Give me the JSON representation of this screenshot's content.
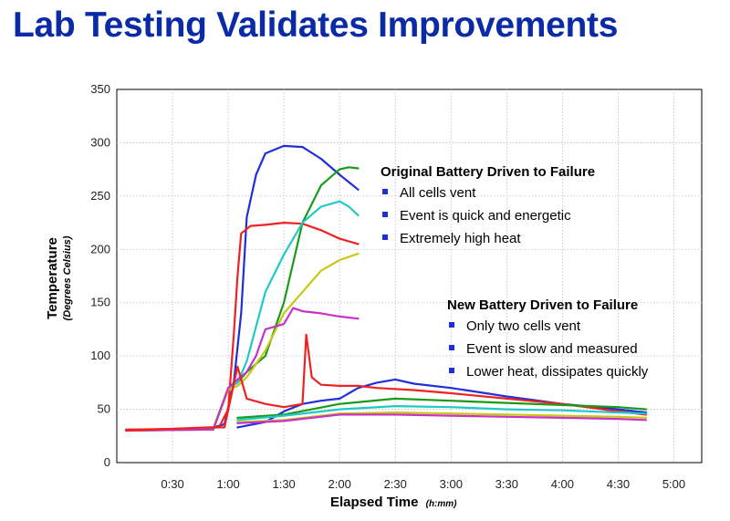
{
  "slide": {
    "title": "Lab Testing Validates Improvements"
  },
  "chart_data": {
    "type": "line",
    "ylabel": "Temperature",
    "ylabel_sub": "(Degrees Celsius)",
    "xlabel": "Elapsed Time",
    "xlabel_sub": "(h:mm)",
    "ylim": [
      0,
      350
    ],
    "xlim_minutes": [
      0,
      315
    ],
    "y_ticks": [
      0,
      50,
      100,
      150,
      200,
      250,
      300,
      350
    ],
    "x_ticks": [
      "0:30",
      "1:00",
      "1:30",
      "2:00",
      "2:30",
      "3:00",
      "3:30",
      "4:00",
      "4:30",
      "5:00"
    ],
    "grid": true,
    "annotations": [
      {
        "heading": "Original Battery Driven to Failure",
        "bullets": [
          "All cells vent",
          "Event is quick and energetic",
          "Extremely high heat"
        ]
      },
      {
        "heading": "New Battery Driven to Failure",
        "bullets": [
          "Only two cells vent",
          "Event is slow and measured",
          "Lower heat, dissipates quickly"
        ]
      }
    ],
    "series": [
      {
        "color": "#1f2fd8",
        "x": [
          "0:05",
          "0:45",
          "0:52",
          "0:58",
          "1:03",
          "1:07",
          "1:10",
          "1:15",
          "1:20",
          "1:30",
          "1:40",
          "1:50",
          "2:00",
          "2:10"
        ],
        "y": [
          31,
          31,
          33,
          36,
          75,
          140,
          230,
          270,
          290,
          297,
          296,
          285,
          270,
          256
        ]
      },
      {
        "color": "#ee2222",
        "x": [
          "0:05",
          "0:45",
          "0:55",
          "1:00",
          "1:03",
          "1:05",
          "1:07",
          "1:12",
          "1:20",
          "1:30",
          "1:40",
          "1:50",
          "2:00",
          "2:10"
        ],
        "y": [
          31,
          32,
          33,
          50,
          120,
          175,
          215,
          222,
          223,
          225,
          224,
          218,
          210,
          205
        ]
      },
      {
        "color": "#1a9a1a",
        "x": [
          "0:05",
          "0:52",
          "1:00",
          "1:05",
          "1:10",
          "1:20",
          "1:30",
          "1:40",
          "1:50",
          "2:00",
          "2:05",
          "2:10"
        ],
        "y": [
          30,
          32,
          70,
          75,
          85,
          100,
          150,
          225,
          260,
          275,
          277,
          276
        ]
      },
      {
        "color": "#22c8c8",
        "x": [
          "0:05",
          "0:52",
          "1:00",
          "1:05",
          "1:10",
          "1:20",
          "1:30",
          "1:40",
          "1:50",
          "2:00",
          "2:05",
          "2:10"
        ],
        "y": [
          30,
          31,
          70,
          75,
          95,
          160,
          195,
          225,
          240,
          245,
          240,
          232
        ]
      },
      {
        "color": "#c8c814",
        "x": [
          "0:05",
          "0:52",
          "1:00",
          "1:05",
          "1:10",
          "1:20",
          "1:30",
          "1:40",
          "1:50",
          "2:00",
          "2:10"
        ],
        "y": [
          30,
          31,
          68,
          72,
          80,
          105,
          140,
          160,
          180,
          190,
          196
        ]
      },
      {
        "color": "#c832c8",
        "x": [
          "0:05",
          "0:52",
          "1:00",
          "1:05",
          "1:10",
          "1:15",
          "1:20",
          "1:30",
          "1:35",
          "1:40",
          "1:50",
          "2:00",
          "2:10"
        ],
        "y": [
          30,
          31,
          70,
          78,
          85,
          100,
          125,
          130,
          145,
          142,
          140,
          137,
          135
        ]
      },
      {
        "color": "#1f2fd8",
        "x": [
          "1:05",
          "1:20",
          "1:30",
          "1:40",
          "1:50",
          "2:00",
          "2:10",
          "2:20",
          "2:30",
          "2:40",
          "3:00",
          "3:30",
          "4:00",
          "4:30",
          "4:45"
        ],
        "y": [
          33,
          38,
          48,
          55,
          58,
          60,
          70,
          75,
          78,
          74,
          70,
          62,
          55,
          50,
          47
        ]
      },
      {
        "color": "#ee2222",
        "x": [
          "0:05",
          "0:50",
          "0:58",
          "1:05",
          "1:10",
          "1:20",
          "1:30",
          "1:40",
          "1:42",
          "1:45",
          "1:50",
          "2:00",
          "2:10",
          "2:20",
          "2:40",
          "3:00",
          "3:30",
          "4:00",
          "4:30",
          "4:45"
        ],
        "y": [
          30,
          33,
          33,
          90,
          60,
          55,
          52,
          55,
          120,
          80,
          73,
          72,
          72,
          70,
          68,
          65,
          60,
          55,
          48,
          45
        ]
      },
      {
        "color": "#1a9a1a",
        "x": [
          "1:05",
          "1:30",
          "1:45",
          "2:00",
          "2:30",
          "3:00",
          "3:30",
          "4:00",
          "4:30",
          "4:45"
        ],
        "y": [
          42,
          45,
          50,
          55,
          60,
          58,
          56,
          54,
          52,
          50
        ]
      },
      {
        "color": "#22c8c8",
        "x": [
          "1:05",
          "1:30",
          "1:45",
          "2:00",
          "2:30",
          "3:00",
          "3:30",
          "4:00",
          "4:30",
          "4:45"
        ],
        "y": [
          40,
          44,
          47,
          50,
          53,
          52,
          50,
          49,
          47,
          46
        ]
      },
      {
        "color": "#c8c814",
        "x": [
          "1:05",
          "1:30",
          "1:45",
          "2:00",
          "2:30",
          "3:00",
          "3:30",
          "4:00",
          "4:30",
          "4:45"
        ],
        "y": [
          38,
          40,
          43,
          46,
          47,
          46,
          45,
          44,
          43,
          42
        ]
      },
      {
        "color": "#c832c8",
        "x": [
          "1:05",
          "1:30",
          "1:45",
          "2:00",
          "2:30",
          "3:00",
          "3:30",
          "4:00",
          "4:30",
          "4:45"
        ],
        "y": [
          37,
          39,
          42,
          45,
          45,
          44,
          43,
          42,
          41,
          40
        ]
      }
    ]
  }
}
